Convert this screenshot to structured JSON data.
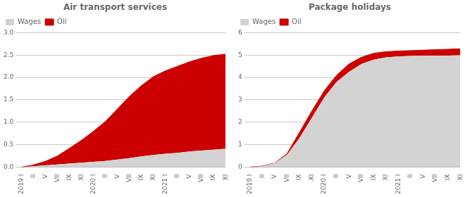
{
  "chart_data": [
    {
      "type": "area",
      "title": "Air transport services",
      "categories": [
        "2019 I",
        "II",
        "V",
        "VII",
        "IX",
        "XI",
        "2020 I",
        "II",
        "V",
        "VII",
        "IX",
        "XI",
        "2021 I",
        "II",
        "V",
        "VII",
        "IX",
        "XI"
      ],
      "series": [
        {
          "name": "Wages",
          "color": "#d3d3d3",
          "values": [
            0.0,
            0.02,
            0.04,
            0.06,
            0.08,
            0.1,
            0.12,
            0.14,
            0.17,
            0.2,
            0.24,
            0.27,
            0.3,
            0.32,
            0.35,
            0.37,
            0.39,
            0.41
          ]
        },
        {
          "name": "Oil",
          "color": "#cc0000",
          "values": [
            0.0,
            0.05,
            0.13,
            0.25,
            0.42,
            0.6,
            0.8,
            1.02,
            1.3,
            1.58,
            1.82,
            2.02,
            2.15,
            2.25,
            2.35,
            2.43,
            2.49,
            2.52
          ]
        }
      ],
      "ylim": [
        0,
        3.0
      ],
      "yticks": [
        {
          "value": 0.0,
          "label": "0.0"
        },
        {
          "value": 0.5,
          "label": "0.5"
        },
        {
          "value": 1.0,
          "label": "1.0"
        },
        {
          "value": 1.5,
          "label": "1.5"
        },
        {
          "value": 2.0,
          "label": "2.0"
        },
        {
          "value": 2.5,
          "label": "2.5"
        },
        {
          "value": 3.0,
          "label": "3.0"
        }
      ],
      "grid": true,
      "legend": "upper left"
    },
    {
      "type": "area",
      "title": "Package holidays",
      "categories": [
        "2019 I",
        "II",
        "V",
        "VII",
        "IX",
        "XI",
        "2020 I",
        "II",
        "V",
        "VII",
        "IX",
        "XI",
        "2021 I",
        "II",
        "V",
        "VII",
        "IX",
        "XI"
      ],
      "series": [
        {
          "name": "Wages",
          "color": "#d3d3d3",
          "values": [
            0.0,
            0.05,
            0.18,
            0.55,
            1.3,
            2.2,
            3.1,
            3.8,
            4.25,
            4.6,
            4.8,
            4.9,
            4.94,
            4.96,
            4.97,
            4.98,
            4.98,
            4.99
          ]
        },
        {
          "name": "Oil",
          "color": "#cc0000",
          "values": [
            0.0,
            0.05,
            0.18,
            0.6,
            1.55,
            2.5,
            3.4,
            4.1,
            4.6,
            4.9,
            5.08,
            5.15,
            5.18,
            5.2,
            5.22,
            5.24,
            5.26,
            5.28
          ]
        }
      ],
      "ylim": [
        0,
        6
      ],
      "yticks": [
        0,
        1,
        2,
        3,
        4,
        5,
        6
      ],
      "grid": true,
      "legend": "upper left"
    }
  ]
}
